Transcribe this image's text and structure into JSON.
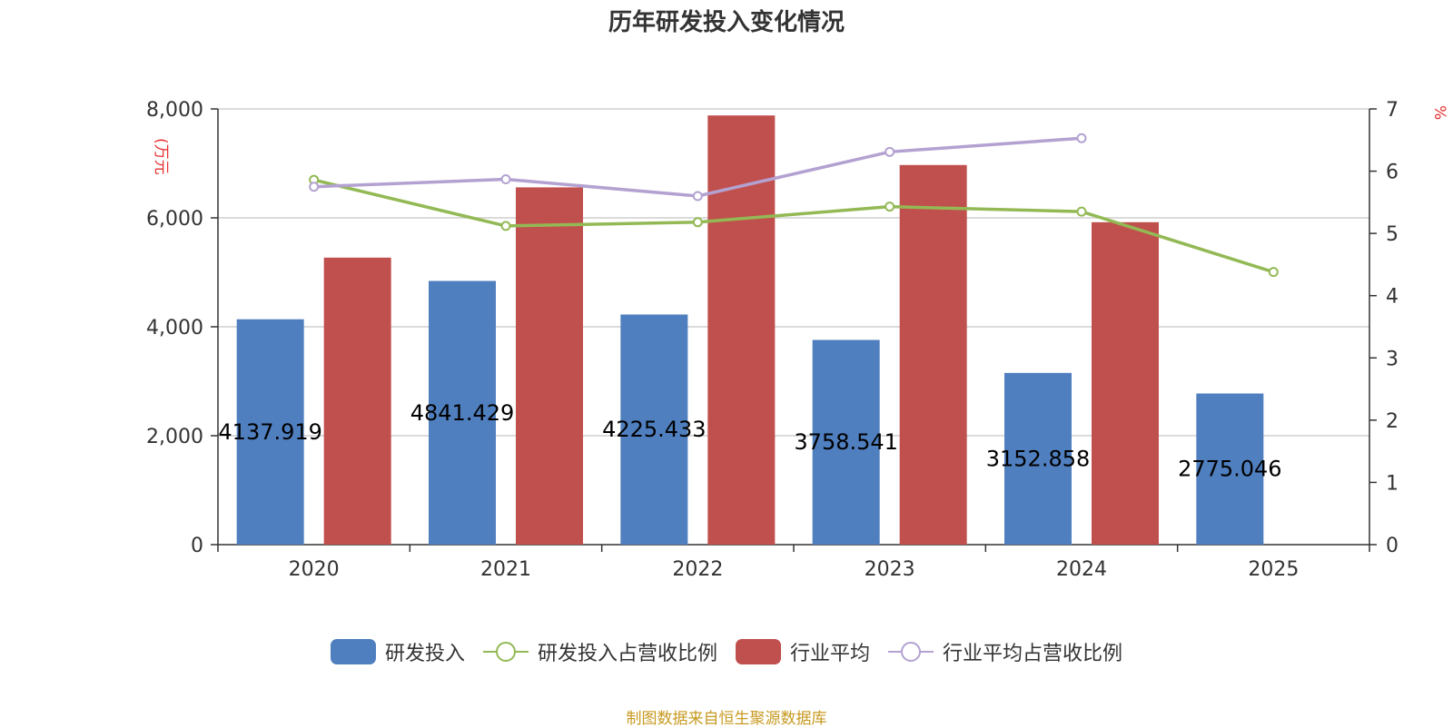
{
  "chart_data": {
    "type": "bar",
    "title": "历年研发投入变化情况",
    "categories": [
      "2020",
      "2021",
      "2022",
      "2023",
      "2024",
      "2025"
    ],
    "y_left": {
      "unit": "(万元",
      "ticks": [
        "0",
        "2,000",
        "4,000",
        "6,000",
        "8,000"
      ],
      "ylim": [
        0,
        8000
      ]
    },
    "y_right": {
      "unit": "%",
      "ticks": [
        "0",
        "1",
        "2",
        "3",
        "4",
        "5",
        "6",
        "7"
      ],
      "ylim": [
        0,
        7
      ]
    },
    "series": [
      {
        "name": "研发投入",
        "type": "bar",
        "axis": "left",
        "color": "#4f7fbf",
        "values": [
          4137.919,
          4841.429,
          4225.433,
          3758.541,
          3152.858,
          2775.046
        ],
        "labels": [
          "4137.919",
          "4841.429",
          "4225.433",
          "3758.541",
          "3152.858",
          "2775.046"
        ]
      },
      {
        "name": "研发投入占营收比例",
        "type": "line",
        "axis": "right",
        "color": "#93b955",
        "values": [
          5.86,
          5.12,
          5.18,
          5.43,
          5.35,
          4.38
        ]
      },
      {
        "name": "行业平均",
        "type": "bar",
        "axis": "left",
        "color": "#c0504d",
        "values": [
          5270,
          6560,
          7880,
          6970,
          5920,
          null
        ]
      },
      {
        "name": "行业平均占营收比例",
        "type": "line",
        "axis": "right",
        "color": "#b3a2d1",
        "values": [
          5.75,
          5.87,
          5.6,
          6.31,
          6.53,
          null
        ]
      }
    ],
    "grid": true,
    "legend_position": "bottom"
  },
  "source_text": "制图数据来自恒生聚源数据库"
}
